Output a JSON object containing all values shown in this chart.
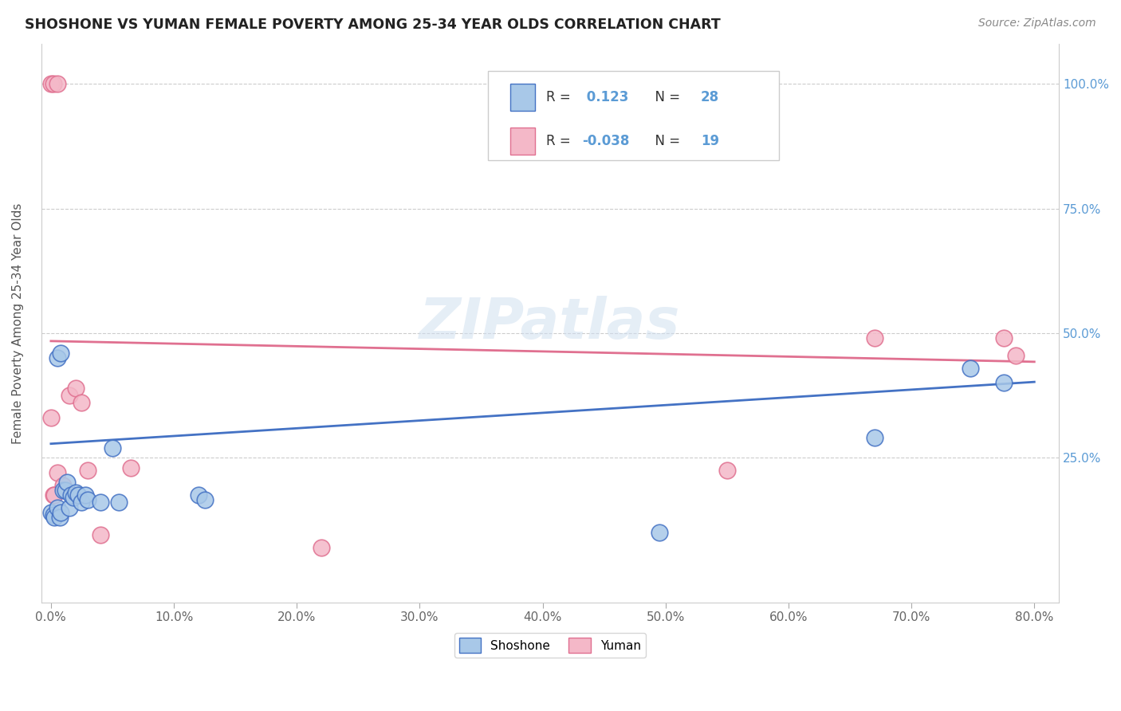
{
  "title": "SHOSHONE VS YUMAN FEMALE POVERTY AMONG 25-34 YEAR OLDS CORRELATION CHART",
  "source": "Source: ZipAtlas.com",
  "ylabel": "Female Poverty Among 25-34 Year Olds",
  "shoshone_color": "#a8c8e8",
  "yuman_color": "#f4b8c8",
  "shoshone_edge_color": "#4472c4",
  "yuman_edge_color": "#e07090",
  "shoshone_line_color": "#4472c4",
  "yuman_line_color": "#e07090",
  "right_tick_color": "#5b9bd5",
  "grid_color": "#cccccc",
  "background_color": "#ffffff",
  "shoshone_R": 0.123,
  "shoshone_N": 28,
  "yuman_R": -0.038,
  "yuman_N": 19,
  "shoshone_x": [
    0.0,
    0.002,
    0.003,
    0.005,
    0.007,
    0.008,
    0.01,
    0.012,
    0.013,
    0.015,
    0.016,
    0.018,
    0.02,
    0.022,
    0.025,
    0.028,
    0.03,
    0.04,
    0.05,
    0.055,
    0.12,
    0.125,
    0.495,
    0.67,
    0.748,
    0.775,
    0.005,
    0.008
  ],
  "shoshone_y": [
    0.14,
    0.135,
    0.13,
    0.15,
    0.13,
    0.14,
    0.185,
    0.185,
    0.2,
    0.15,
    0.175,
    0.17,
    0.18,
    0.175,
    0.16,
    0.175,
    0.165,
    0.16,
    0.27,
    0.16,
    0.175,
    0.165,
    0.1,
    0.29,
    0.43,
    0.4,
    0.45,
    0.46
  ],
  "yuman_x": [
    0.0,
    0.002,
    0.003,
    0.005,
    0.01,
    0.015,
    0.02,
    0.025,
    0.03,
    0.04,
    0.065,
    0.22,
    0.55,
    0.67,
    0.775,
    0.785,
    0.0,
    0.002,
    0.005
  ],
  "yuman_y": [
    0.33,
    0.175,
    0.175,
    0.22,
    0.195,
    0.375,
    0.39,
    0.36,
    0.225,
    0.095,
    0.23,
    0.07,
    0.225,
    0.49,
    0.49,
    0.455,
    1.0,
    1.0,
    1.0
  ],
  "xtick_vals": [
    0.0,
    0.1,
    0.2,
    0.3,
    0.4,
    0.5,
    0.6,
    0.7,
    0.8
  ],
  "xtick_labels": [
    "0.0%",
    "10.0%",
    "20.0%",
    "30.0%",
    "40.0%",
    "50.0%",
    "60.0%",
    "70.0%",
    "80.0%"
  ],
  "ytick_vals": [
    0.0,
    0.25,
    0.5,
    0.75,
    1.0
  ],
  "ytick_labels_right": [
    "",
    "25.0%",
    "50.0%",
    "75.0%",
    "100.0%"
  ]
}
